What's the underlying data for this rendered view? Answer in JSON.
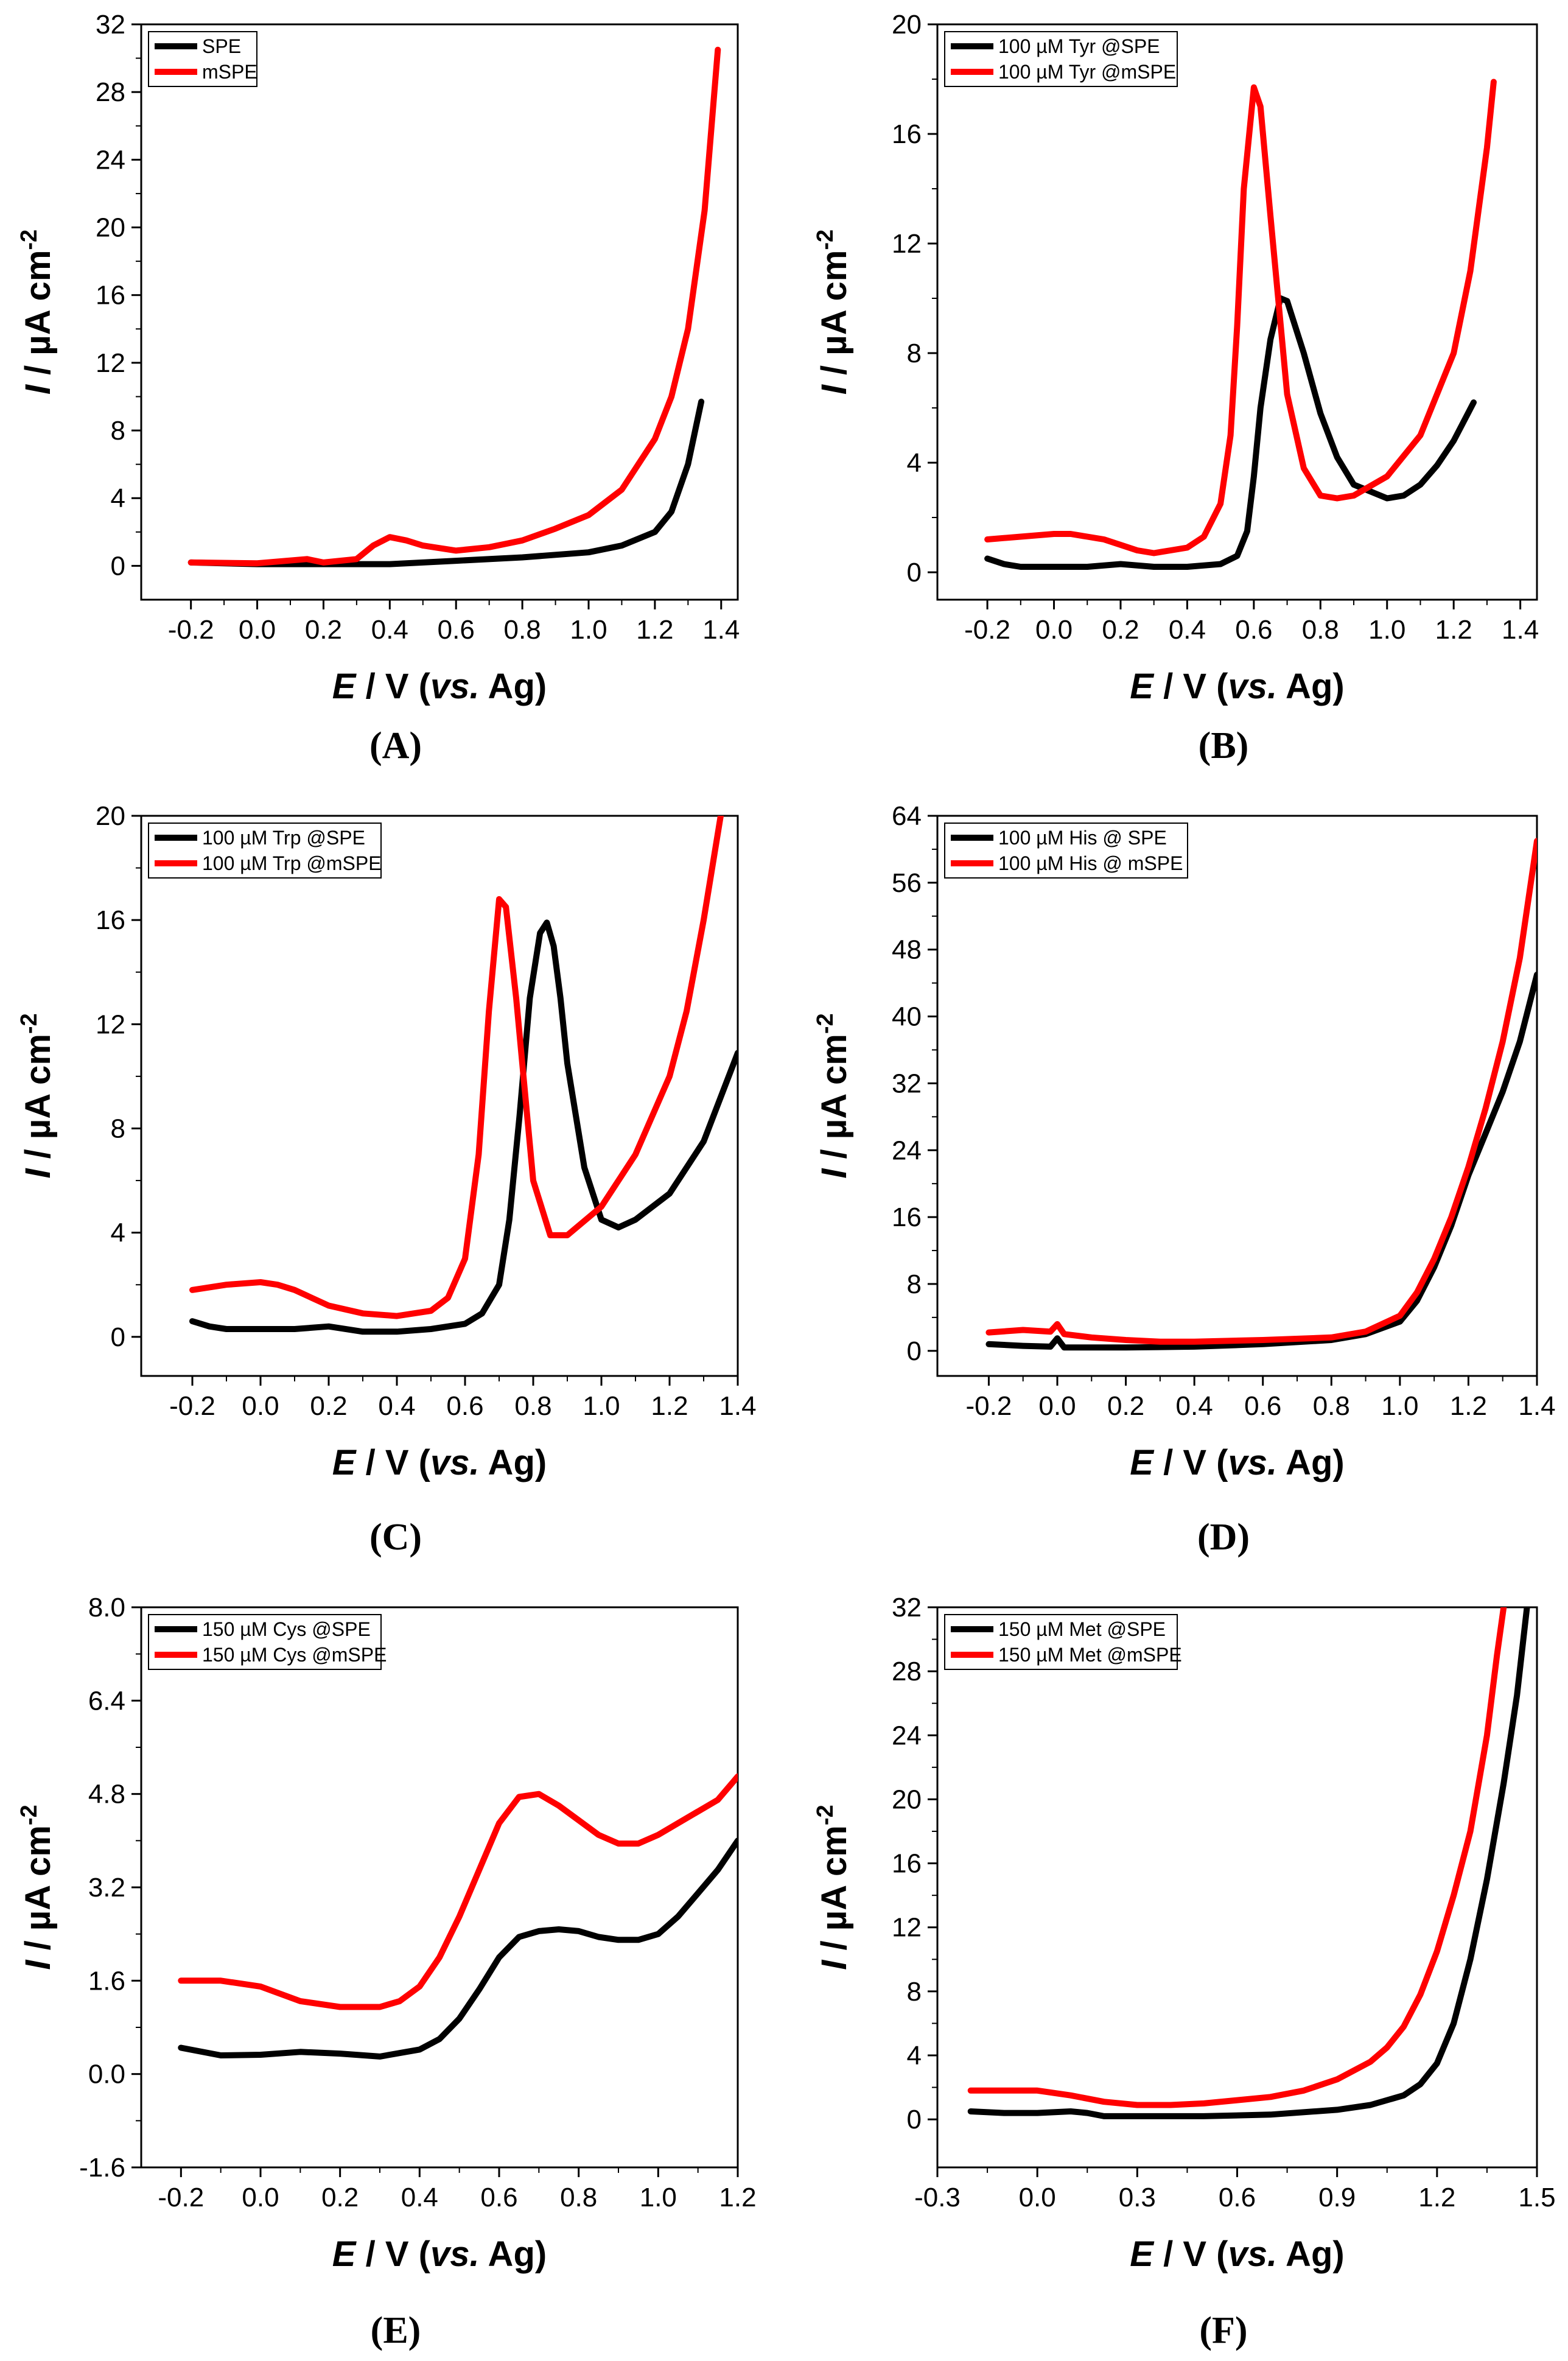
{
  "chart_data": [
    {
      "type": "line",
      "panel_label": "(A)",
      "xlabel": {
        "var": "E",
        "rest": " / V (",
        "vs": "vs.",
        "ref": " Ag)"
      },
      "ylabel": {
        "var": "I",
        "unit": " / µA cm",
        "exp": "-2"
      },
      "xlim": [
        -0.35,
        1.45
      ],
      "ylim": [
        -2,
        32
      ],
      "xticks": [
        -0.2,
        0.0,
        0.2,
        0.4,
        0.6,
        0.8,
        1.0,
        1.2,
        1.4
      ],
      "xtick_labels": [
        "-0.2",
        "0.0",
        "0.2",
        "0.4",
        "0.6",
        "0.8",
        "1.0",
        "1.2",
        "1.4"
      ],
      "yticks": [
        0,
        4,
        8,
        12,
        16,
        20,
        24,
        28,
        32
      ],
      "ytick_labels": [
        "0",
        "4",
        "8",
        "12",
        "16",
        "20",
        "24",
        "28",
        "32"
      ],
      "legend_position": "top-left",
      "series": [
        {
          "name": "SPE",
          "color": "#000000",
          "x": [
            -0.2,
            0,
            0.2,
            0.4,
            0.6,
            0.8,
            1.0,
            1.1,
            1.2,
            1.25,
            1.3,
            1.34
          ],
          "y": [
            0.2,
            0.1,
            0.1,
            0.1,
            0.3,
            0.5,
            0.8,
            1.2,
            2.0,
            3.2,
            6.0,
            9.7
          ]
        },
        {
          "name": "mSPE",
          "color": "#ff0000",
          "x": [
            -0.2,
            0,
            0.15,
            0.2,
            0.3,
            0.35,
            0.4,
            0.45,
            0.5,
            0.6,
            0.7,
            0.8,
            0.9,
            1.0,
            1.1,
            1.2,
            1.25,
            1.3,
            1.35,
            1.39
          ],
          "y": [
            0.2,
            0.15,
            0.4,
            0.2,
            0.4,
            1.2,
            1.7,
            1.5,
            1.2,
            0.9,
            1.1,
            1.5,
            2.2,
            3.0,
            4.5,
            7.5,
            10.0,
            14.0,
            21.0,
            30.5
          ]
        }
      ]
    },
    {
      "type": "line",
      "panel_label": "(B)",
      "xlabel": {
        "var": "E",
        "rest": " / V (",
        "vs": "vs.",
        "ref": " Ag)"
      },
      "ylabel": {
        "var": "I",
        "unit": " / µA cm",
        "exp": "-2"
      },
      "xlim": [
        -0.35,
        1.45
      ],
      "ylim": [
        -1,
        20
      ],
      "xticks": [
        -0.2,
        0.0,
        0.2,
        0.4,
        0.6,
        0.8,
        1.0,
        1.2,
        1.4
      ],
      "xtick_labels": [
        "-0.2",
        "0.0",
        "0.2",
        "0.4",
        "0.6",
        "0.8",
        "1.0",
        "1.2",
        "1.4"
      ],
      "yticks": [
        0,
        4,
        8,
        12,
        16,
        20
      ],
      "ytick_labels": [
        "0",
        "4",
        "8",
        "12",
        "16",
        "20"
      ],
      "legend_position": "top-left",
      "series": [
        {
          "name": "100 µM Tyr @SPE",
          "color": "#000000",
          "x": [
            -0.2,
            -0.15,
            -0.1,
            0.0,
            0.1,
            0.2,
            0.3,
            0.4,
            0.5,
            0.55,
            0.58,
            0.6,
            0.62,
            0.65,
            0.68,
            0.7,
            0.75,
            0.8,
            0.85,
            0.9,
            1.0,
            1.05,
            1.1,
            1.15,
            1.2,
            1.26
          ],
          "y": [
            0.5,
            0.3,
            0.2,
            0.2,
            0.2,
            0.3,
            0.2,
            0.2,
            0.3,
            0.6,
            1.5,
            3.5,
            6.0,
            8.5,
            10.0,
            9.9,
            8.0,
            5.8,
            4.2,
            3.2,
            2.7,
            2.8,
            3.2,
            3.9,
            4.8,
            6.2
          ]
        },
        {
          "name": "100 µM Tyr @mSPE",
          "color": "#ff0000",
          "x": [
            -0.2,
            -0.1,
            0.0,
            0.05,
            0.1,
            0.15,
            0.2,
            0.25,
            0.3,
            0.35,
            0.4,
            0.45,
            0.5,
            0.53,
            0.55,
            0.57,
            0.6,
            0.62,
            0.65,
            0.7,
            0.75,
            0.8,
            0.85,
            0.9,
            1.0,
            1.1,
            1.2,
            1.25,
            1.3,
            1.32
          ],
          "y": [
            1.2,
            1.3,
            1.4,
            1.4,
            1.3,
            1.2,
            1.0,
            0.8,
            0.7,
            0.8,
            0.9,
            1.3,
            2.5,
            5.0,
            9.0,
            14.0,
            17.7,
            17.0,
            13.0,
            6.5,
            3.8,
            2.8,
            2.7,
            2.8,
            3.5,
            5.0,
            8.0,
            11.0,
            15.5,
            17.9
          ]
        }
      ]
    },
    {
      "type": "line",
      "panel_label": "(C)",
      "xlabel": {
        "var": "E",
        "rest": " / V (",
        "vs": "vs.",
        "ref": " Ag)"
      },
      "ylabel": {
        "var": "I",
        "unit": " / µA cm",
        "exp": "-2"
      },
      "xlim": [
        -0.35,
        1.4
      ],
      "ylim": [
        -1.5,
        20
      ],
      "xticks": [
        -0.2,
        0.0,
        0.2,
        0.4,
        0.6,
        0.8,
        1.0,
        1.2,
        1.4
      ],
      "xtick_labels": [
        "-0.2",
        "0.0",
        "0.2",
        "0.4",
        "0.6",
        "0.8",
        "1.0",
        "1.2",
        "1.4"
      ],
      "yticks": [
        0,
        4,
        8,
        12,
        16,
        20
      ],
      "ytick_labels": [
        "0",
        "4",
        "8",
        "12",
        "16",
        "20"
      ],
      "legend_position": "top-left",
      "series": [
        {
          "name": "100 µM Trp @SPE",
          "color": "#000000",
          "x": [
            -0.2,
            -0.15,
            -0.1,
            0.0,
            0.1,
            0.2,
            0.3,
            0.4,
            0.5,
            0.6,
            0.65,
            0.7,
            0.73,
            0.76,
            0.79,
            0.82,
            0.84,
            0.86,
            0.88,
            0.9,
            0.95,
            1.0,
            1.05,
            1.1,
            1.2,
            1.3,
            1.4
          ],
          "y": [
            0.6,
            0.4,
            0.3,
            0.3,
            0.3,
            0.4,
            0.2,
            0.2,
            0.3,
            0.5,
            0.9,
            2.0,
            4.5,
            8.5,
            13.0,
            15.5,
            15.9,
            15.0,
            13.0,
            10.5,
            6.5,
            4.5,
            4.2,
            4.5,
            5.5,
            7.5,
            10.9
          ]
        },
        {
          "name": "100 µM Trp @mSPE",
          "color": "#ff0000",
          "x": [
            -0.2,
            -0.1,
            0.0,
            0.05,
            0.1,
            0.2,
            0.3,
            0.4,
            0.5,
            0.55,
            0.6,
            0.64,
            0.67,
            0.7,
            0.72,
            0.75,
            0.8,
            0.85,
            0.9,
            1.0,
            1.1,
            1.2,
            1.25,
            1.3,
            1.35
          ],
          "y": [
            1.8,
            2.0,
            2.1,
            2.0,
            1.8,
            1.2,
            0.9,
            0.8,
            1.0,
            1.5,
            3.0,
            7.0,
            12.5,
            16.8,
            16.5,
            13.0,
            6.0,
            3.9,
            3.9,
            5.0,
            7.0,
            10.0,
            12.5,
            16.0,
            20.0
          ]
        }
      ]
    },
    {
      "type": "line",
      "panel_label": "(D)",
      "xlabel": {
        "var": "E",
        "rest": " / V (",
        "vs": "vs.",
        "ref": " Ag)"
      },
      "ylabel": {
        "var": "I",
        "unit": " / µA cm",
        "exp": "-2"
      },
      "xlim": [
        -0.35,
        1.4
      ],
      "ylim": [
        -3,
        64
      ],
      "xticks": [
        -0.2,
        0.0,
        0.2,
        0.4,
        0.6,
        0.8,
        1.0,
        1.2,
        1.4
      ],
      "xtick_labels": [
        "-0.2",
        "0.0",
        "0.2",
        "0.4",
        "0.6",
        "0.8",
        "1.0",
        "1.2",
        "1.4"
      ],
      "yticks": [
        0,
        8,
        16,
        24,
        32,
        40,
        48,
        56,
        64
      ],
      "ytick_labels": [
        "0",
        "8",
        "16",
        "24",
        "32",
        "40",
        "48",
        "56",
        "64"
      ],
      "legend_position": "top-left",
      "series": [
        {
          "name": "100 µM His @ SPE",
          "color": "#000000",
          "x": [
            -0.2,
            -0.1,
            -0.02,
            0.0,
            0.02,
            0.1,
            0.2,
            0.4,
            0.6,
            0.8,
            0.9,
            1.0,
            1.05,
            1.1,
            1.15,
            1.2,
            1.25,
            1.3,
            1.35,
            1.4
          ],
          "y": [
            0.8,
            0.6,
            0.5,
            1.5,
            0.4,
            0.4,
            0.4,
            0.5,
            0.8,
            1.3,
            2.0,
            3.5,
            6.0,
            10.0,
            15.0,
            21.0,
            26.0,
            31.0,
            37.0,
            45.0
          ]
        },
        {
          "name": "100 µM His @ mSPE",
          "color": "#ff0000",
          "x": [
            -0.2,
            -0.1,
            -0.02,
            0.0,
            0.02,
            0.1,
            0.2,
            0.3,
            0.4,
            0.6,
            0.8,
            0.9,
            1.0,
            1.05,
            1.1,
            1.15,
            1.2,
            1.25,
            1.3,
            1.35,
            1.4
          ],
          "y": [
            2.2,
            2.5,
            2.3,
            3.2,
            2.0,
            1.6,
            1.3,
            1.1,
            1.1,
            1.3,
            1.6,
            2.3,
            4.2,
            7.0,
            11.0,
            16.0,
            22.0,
            29.0,
            37.0,
            47.0,
            61.0
          ]
        }
      ]
    },
    {
      "type": "line",
      "panel_label": "(E)",
      "xlabel": {
        "var": "E",
        "rest": " / V (",
        "vs": "vs.",
        "ref": " Ag)"
      },
      "ylabel": {
        "var": "I",
        "unit": " / µA cm",
        "exp": "-2"
      },
      "xlim": [
        -0.3,
        1.2
      ],
      "ylim": [
        -1.6,
        8.0
      ],
      "xticks": [
        -0.2,
        0.0,
        0.2,
        0.4,
        0.6,
        0.8,
        1.0,
        1.2
      ],
      "xtick_labels": [
        "-0.2",
        "0.0",
        "0.2",
        "0.4",
        "0.6",
        "0.8",
        "1.0",
        "1.2"
      ],
      "yticks": [
        -1.6,
        0.0,
        1.6,
        3.2,
        4.8,
        6.4,
        8.0
      ],
      "ytick_labels": [
        "-1.6",
        "0.0",
        "1.6",
        "3.2",
        "4.8",
        "6.4",
        "8.0"
      ],
      "legend_position": "top-left",
      "series": [
        {
          "name": "150 µM Cys @SPE",
          "color": "#000000",
          "x": [
            -0.2,
            -0.1,
            0.0,
            0.1,
            0.2,
            0.3,
            0.4,
            0.45,
            0.5,
            0.55,
            0.6,
            0.65,
            0.7,
            0.75,
            0.8,
            0.85,
            0.9,
            0.95,
            1.0,
            1.05,
            1.1,
            1.15,
            1.2
          ],
          "y": [
            0.45,
            0.32,
            0.33,
            0.38,
            0.35,
            0.3,
            0.42,
            0.6,
            0.95,
            1.45,
            2.0,
            2.35,
            2.45,
            2.48,
            2.45,
            2.35,
            2.3,
            2.3,
            2.4,
            2.7,
            3.1,
            3.5,
            4.0
          ]
        },
        {
          "name": "150 µM Cys @mSPE",
          "color": "#ff0000",
          "x": [
            -0.2,
            -0.1,
            0.0,
            0.1,
            0.2,
            0.3,
            0.35,
            0.4,
            0.45,
            0.5,
            0.55,
            0.6,
            0.65,
            0.7,
            0.75,
            0.8,
            0.85,
            0.9,
            0.95,
            1.0,
            1.05,
            1.1,
            1.15,
            1.2
          ],
          "y": [
            1.6,
            1.6,
            1.5,
            1.25,
            1.15,
            1.15,
            1.25,
            1.5,
            2.0,
            2.7,
            3.5,
            4.3,
            4.75,
            4.8,
            4.6,
            4.35,
            4.1,
            3.95,
            3.95,
            4.1,
            4.3,
            4.5,
            4.7,
            5.1
          ]
        }
      ]
    },
    {
      "type": "line",
      "panel_label": "(F)",
      "xlabel": {
        "var": "E",
        "rest": " / V (",
        "vs": "vs.",
        "ref": " Ag)"
      },
      "ylabel": {
        "var": "I",
        "unit": " / µA cm",
        "exp": "-2"
      },
      "xlim": [
        -0.3,
        1.5
      ],
      "ylim": [
        -3,
        32
      ],
      "xticks": [
        -0.3,
        0.0,
        0.3,
        0.6,
        0.9,
        1.2,
        1.5
      ],
      "xtick_labels": [
        "-0.3",
        "0.0",
        "0.3",
        "0.6",
        "0.9",
        "1.2",
        "1.5"
      ],
      "yticks": [
        0,
        4,
        8,
        12,
        16,
        20,
        24,
        28,
        32
      ],
      "ytick_labels": [
        "0",
        "4",
        "8",
        "12",
        "16",
        "20",
        "24",
        "28",
        "32"
      ],
      "legend_position": "top-left",
      "series": [
        {
          "name": "150 µM Met @SPE",
          "color": "#000000",
          "x": [
            -0.2,
            -0.1,
            0.0,
            0.1,
            0.15,
            0.2,
            0.3,
            0.5,
            0.7,
            0.9,
            1.0,
            1.1,
            1.15,
            1.2,
            1.25,
            1.3,
            1.35,
            1.4,
            1.44,
            1.47
          ],
          "y": [
            0.5,
            0.4,
            0.4,
            0.5,
            0.4,
            0.2,
            0.2,
            0.2,
            0.3,
            0.6,
            0.9,
            1.5,
            2.2,
            3.5,
            6.0,
            10.0,
            15.0,
            21.0,
            26.5,
            32.0
          ]
        },
        {
          "name": "150 µM Met @mSPE",
          "color": "#ff0000",
          "x": [
            -0.2,
            -0.1,
            0.0,
            0.1,
            0.2,
            0.3,
            0.4,
            0.5,
            0.6,
            0.7,
            0.8,
            0.9,
            1.0,
            1.05,
            1.1,
            1.15,
            1.2,
            1.25,
            1.3,
            1.35,
            1.38,
            1.4
          ],
          "y": [
            1.8,
            1.8,
            1.8,
            1.5,
            1.1,
            0.9,
            0.9,
            1.0,
            1.2,
            1.4,
            1.8,
            2.5,
            3.6,
            4.5,
            5.8,
            7.8,
            10.5,
            14.0,
            18.0,
            24.0,
            29.0,
            32.0
          ]
        }
      ]
    }
  ]
}
